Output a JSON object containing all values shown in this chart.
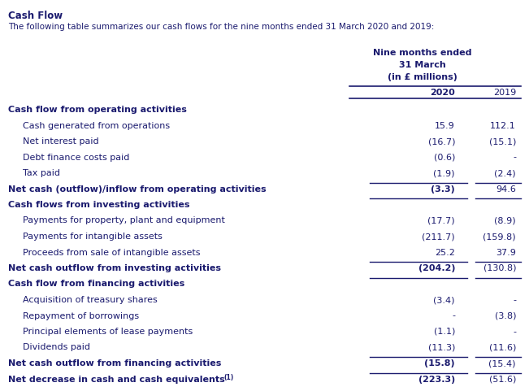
{
  "title": "Cash Flow",
  "subtitle": "The following table summarizes our cash flows for the nine months ended 31 March 2020 and 2019:",
  "header_line1": "Nine months ended",
  "header_line2": "31 March",
  "header_line3": "(in £ millions)",
  "col2020": "2020",
  "col2019": "2019",
  "rows": [
    {
      "label": "Cash flow from operating activities",
      "bold": true,
      "val2020": "",
      "val2019": "",
      "line_below": false,
      "double_underline": false,
      "indent": false
    },
    {
      "label": "Cash generated from operations",
      "bold": false,
      "val2020": "15.9",
      "val2019": "112.1",
      "line_below": false,
      "double_underline": false,
      "indent": true
    },
    {
      "label": "Net interest paid",
      "bold": false,
      "val2020": "(16.7)",
      "val2019": "(15.1)",
      "line_below": false,
      "double_underline": false,
      "indent": true
    },
    {
      "label": "Debt finance costs paid",
      "bold": false,
      "val2020": "(0.6)",
      "val2019": "-",
      "line_below": false,
      "double_underline": false,
      "indent": true
    },
    {
      "label": "Tax paid",
      "bold": false,
      "val2020": "(1.9)",
      "val2019": "(2.4)",
      "line_below": true,
      "double_underline": false,
      "indent": true
    },
    {
      "label": "Net cash (outflow)/inflow from operating activities",
      "bold": true,
      "val2020": "(3.3)",
      "val2019": "94.6",
      "line_below": true,
      "double_underline": false,
      "indent": false
    },
    {
      "label": "Cash flows from investing activities",
      "bold": true,
      "val2020": "",
      "val2019": "",
      "line_below": false,
      "double_underline": false,
      "indent": false
    },
    {
      "label": "Payments for property, plant and equipment",
      "bold": false,
      "val2020": "(17.7)",
      "val2019": "(8.9)",
      "line_below": false,
      "double_underline": false,
      "indent": true
    },
    {
      "label": "Payments for intangible assets",
      "bold": false,
      "val2020": "(211.7)",
      "val2019": "(159.8)",
      "line_below": false,
      "double_underline": false,
      "indent": true
    },
    {
      "label": "Proceeds from sale of intangible assets",
      "bold": false,
      "val2020": "25.2",
      "val2019": "37.9",
      "line_below": true,
      "double_underline": false,
      "indent": true
    },
    {
      "label": "Net cash outflow from investing activities",
      "bold": true,
      "val2020": "(204.2)",
      "val2019": "(130.8)",
      "line_below": true,
      "double_underline": false,
      "indent": false
    },
    {
      "label": "Cash flow from financing activities",
      "bold": true,
      "val2020": "",
      "val2019": "",
      "line_below": false,
      "double_underline": false,
      "indent": false
    },
    {
      "label": "Acquisition of treasury shares",
      "bold": false,
      "val2020": "(3.4)",
      "val2019": "-",
      "line_below": false,
      "double_underline": false,
      "indent": true
    },
    {
      "label": "Repayment of borrowings",
      "bold": false,
      "val2020": "-",
      "val2019": "(3.8)",
      "line_below": false,
      "double_underline": false,
      "indent": true
    },
    {
      "label": "Principal elements of lease payments",
      "bold": false,
      "val2020": "(1.1)",
      "val2019": "-",
      "line_below": false,
      "double_underline": false,
      "indent": true
    },
    {
      "label": "Dividends paid",
      "bold": false,
      "val2020": "(11.3)",
      "val2019": "(11.6)",
      "line_below": true,
      "double_underline": false,
      "indent": true
    },
    {
      "label": "Net cash outflow from financing activities",
      "bold": true,
      "val2020": "(15.8)",
      "val2019": "(15.4)",
      "line_below": true,
      "double_underline": false,
      "indent": false
    },
    {
      "label": "Net decrease in cash and cash equivalents",
      "bold": true,
      "val2020": "(223.3)",
      "val2019": "(51.6)",
      "line_below": true,
      "double_underline": true,
      "indent": false,
      "superscript": true
    }
  ],
  "bg_color": "#ffffff",
  "text_color": "#1a1a6e",
  "figw": 6.51,
  "figh": 4.77,
  "dpi": 100
}
